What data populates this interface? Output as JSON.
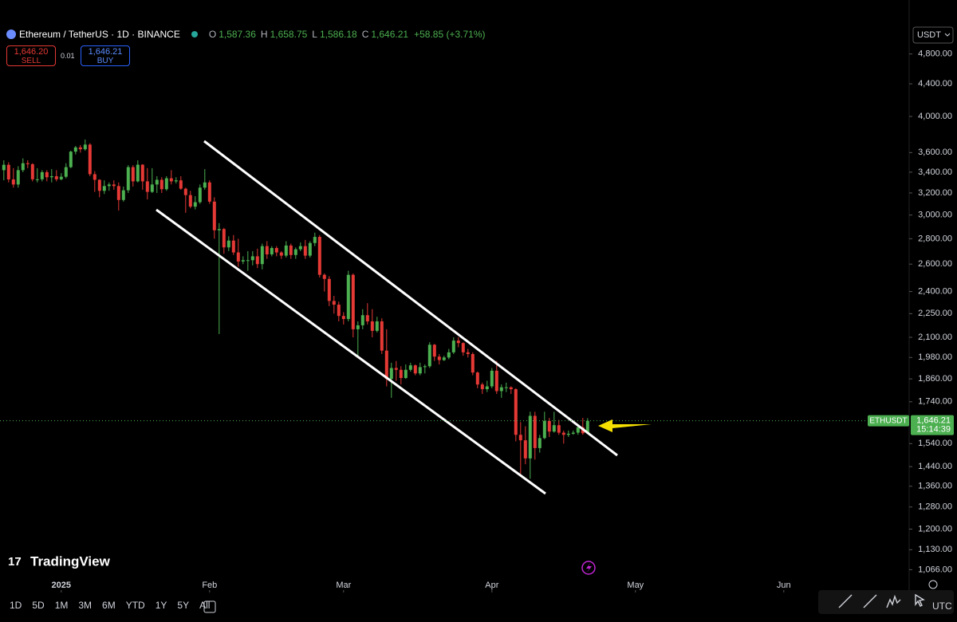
{
  "header": {
    "symbol": "Ethereum / TetherUS · 1D · BINANCE",
    "ohlc": [
      {
        "key": "O",
        "value": "1,587.36"
      },
      {
        "key": "H",
        "value": "1,658.75"
      },
      {
        "key": "L",
        "value": "1,586.18"
      },
      {
        "key": "C",
        "value": "1,646.21"
      }
    ],
    "change": "+58.85 (+3.71%)",
    "sell_price": "1,646.20",
    "sell": "SELL",
    "spread": "0.01",
    "buy_price": "1,646.21",
    "buy": "BUY",
    "currency": "USDT"
  },
  "logo": "TradingView",
  "chart_data": {
    "type": "candlestick",
    "up_color": "#4caf50",
    "down_color": "#e53935",
    "log_scale": true,
    "open": [
      3420,
      3474,
      3329,
      3280,
      3420,
      3490,
      3480,
      3330,
      3330,
      3400,
      3350,
      3360,
      3330,
      3355,
      3450,
      3610,
      3655,
      3635,
      3685,
      3380,
      3325,
      3220,
      3265,
      3280,
      3265,
      3135,
      3225,
      3450,
      3310,
      3475,
      3310,
      3210,
      3280,
      3325,
      3235,
      3340,
      3310,
      3320,
      3240,
      3180,
      3075,
      3115,
      3250,
      3300,
      3120,
      2870,
      2880,
      2730,
      2785,
      2690,
      2620,
      2630,
      2630,
      2660,
      2600,
      2740,
      2675,
      2725,
      2690,
      2665,
      2745,
      2670,
      2715,
      2740,
      2665,
      2765,
      2815,
      2520,
      2490,
      2335,
      2310,
      2235,
      2215,
      2520,
      2150,
      2175,
      2240,
      2200,
      2140,
      2200,
      2020,
      1860,
      1920,
      1910,
      1865,
      1910,
      1935,
      1890,
      1925,
      1930,
      2055,
      1985,
      1965,
      1980,
      2010,
      2080,
      2065,
      2010,
      2000,
      1895,
      1830,
      1805,
      1820,
      1905,
      1795,
      1815,
      1815,
      1805,
      1580,
      1555,
      1475,
      1670,
      1520,
      1565,
      1645,
      1595,
      1625,
      1590,
      1580,
      1585,
      1590,
      1615,
      1587.36
    ],
    "high": [
      3520,
      3500,
      3440,
      3460,
      3540,
      3520,
      3490,
      3440,
      3420,
      3420,
      3430,
      3420,
      3390,
      3490,
      3620,
      3670,
      3680,
      3740,
      3700,
      3410,
      3330,
      3320,
      3300,
      3320,
      3300,
      3260,
      3470,
      3470,
      3520,
      3480,
      3440,
      3440,
      3360,
      3350,
      3360,
      3420,
      3350,
      3360,
      3250,
      3220,
      3170,
      3280,
      3430,
      3320,
      3160,
      2930,
      2890,
      2820,
      2830,
      2800,
      2660,
      2700,
      2700,
      2720,
      2760,
      2780,
      2740,
      2740,
      2700,
      2780,
      2760,
      2730,
      2770,
      2790,
      2780,
      2850,
      2830,
      2530,
      2510,
      2370,
      2330,
      2260,
      2550,
      2530,
      2200,
      2280,
      2320,
      2280,
      2230,
      2220,
      2150,
      1950,
      1960,
      1930,
      1940,
      1950,
      1940,
      1950,
      1940,
      2070,
      2060,
      2000,
      1990,
      2030,
      2100,
      2100,
      2070,
      2030,
      2010,
      1900,
      1840,
      1850,
      1920,
      1960,
      1830,
      1840,
      1820,
      1810,
      1640,
      1620,
      1690,
      1690,
      1580,
      1690,
      1660,
      1690,
      1650,
      1600,
      1600,
      1600,
      1630,
      1660,
      1658.75
    ],
    "low": [
      3320,
      3300,
      3250,
      3250,
      3400,
      3440,
      3310,
      3300,
      3310,
      3310,
      3300,
      3310,
      3320,
      3340,
      3440,
      3580,
      3600,
      3620,
      3360,
      3210,
      3160,
      3190,
      3220,
      3230,
      3040,
      3120,
      3200,
      3260,
      3300,
      3230,
      3140,
      3200,
      3200,
      3200,
      3220,
      3280,
      3290,
      3230,
      3020,
      3060,
      3050,
      3100,
      3230,
      3100,
      2800,
      2120,
      2680,
      2700,
      2670,
      2580,
      2600,
      2550,
      2590,
      2570,
      2560,
      2640,
      2660,
      2660,
      2640,
      2650,
      2640,
      2640,
      2700,
      2640,
      2650,
      2740,
      2500,
      2400,
      2300,
      2250,
      2200,
      2180,
      2200,
      2100,
      1990,
      2150,
      2180,
      2100,
      2130,
      2000,
      1820,
      1760,
      1850,
      1830,
      1860,
      1900,
      1880,
      1880,
      1890,
      1920,
      1960,
      1940,
      1960,
      1970,
      2000,
      2040,
      1990,
      1980,
      1880,
      1810,
      1780,
      1790,
      1810,
      1780,
      1760,
      1790,
      1780,
      1550,
      1410,
      1450,
      1390,
      1470,
      1500,
      1560,
      1570,
      1590,
      1580,
      1540,
      1570,
      1580,
      1580,
      1580,
      1586.18
    ],
    "close": [
      3474,
      3329,
      3280,
      3420,
      3490,
      3480,
      3330,
      3330,
      3400,
      3350,
      3360,
      3330,
      3355,
      3450,
      3610,
      3655,
      3635,
      3685,
      3380,
      3325,
      3220,
      3265,
      3280,
      3265,
      3135,
      3225,
      3450,
      3310,
      3475,
      3310,
      3210,
      3280,
      3325,
      3235,
      3340,
      3310,
      3320,
      3240,
      3180,
      3075,
      3115,
      3250,
      3300,
      3120,
      2870,
      2880,
      2730,
      2785,
      2690,
      2620,
      2630,
      2630,
      2660,
      2600,
      2740,
      2675,
      2725,
      2690,
      2665,
      2745,
      2670,
      2715,
      2740,
      2665,
      2765,
      2815,
      2520,
      2490,
      2335,
      2310,
      2235,
      2215,
      2520,
      2150,
      2175,
      2240,
      2200,
      2140,
      2200,
      2020,
      1860,
      1920,
      1910,
      1865,
      1910,
      1935,
      1890,
      1925,
      1930,
      2055,
      1985,
      1965,
      1980,
      2010,
      2080,
      2065,
      2010,
      2000,
      1895,
      1830,
      1805,
      1820,
      1905,
      1795,
      1815,
      1815,
      1805,
      1580,
      1555,
      1475,
      1670,
      1520,
      1565,
      1645,
      1595,
      1625,
      1590,
      1580,
      1585,
      1590,
      1615,
      1587.36,
      1646.21
    ],
    "ylim": [
      1028,
      5240
    ],
    "yticks": [
      {
        "value": 4800,
        "label": "4,800.00"
      },
      {
        "value": 4400,
        "label": "4,400.00"
      },
      {
        "value": 4000,
        "label": "4,000.00"
      },
      {
        "value": 3600,
        "label": "3,600.00"
      },
      {
        "value": 3400,
        "label": "3,400.00"
      },
      {
        "value": 3200,
        "label": "3,200.00"
      },
      {
        "value": 3000,
        "label": "3,000.00"
      },
      {
        "value": 2800,
        "label": "2,800.00"
      },
      {
        "value": 2600,
        "label": "2,600.00"
      },
      {
        "value": 2400,
        "label": "2,400.00"
      },
      {
        "value": 2250,
        "label": "2,250.00"
      },
      {
        "value": 2100,
        "label": "2,100.00"
      },
      {
        "value": 1980,
        "label": "1,980.00"
      },
      {
        "value": 1860,
        "label": "1,860.00"
      },
      {
        "value": 1740,
        "label": "1,740.00"
      },
      {
        "value": 1540,
        "label": "1,540.00"
      },
      {
        "value": 1440,
        "label": "1,440.00"
      },
      {
        "value": 1360,
        "label": "1,360.00"
      },
      {
        "value": 1280,
        "label": "1,280.00"
      },
      {
        "value": 1200,
        "label": "1,200.00"
      },
      {
        "value": 1130,
        "label": "1,130.00"
      },
      {
        "value": 1066,
        "label": "1,066.00"
      }
    ],
    "xlim": [
      -0.8,
      189.2
    ],
    "xticks": [
      {
        "value": 12,
        "label": "2025"
      },
      {
        "value": 43,
        "label": "Feb"
      },
      {
        "value": 71,
        "label": "Mar"
      },
      {
        "value": 102,
        "label": "Apr"
      },
      {
        "value": 132,
        "label": "May"
      },
      {
        "value": 163,
        "label": "Jun"
      }
    ],
    "last_price": {
      "symbol": "ETHUSDT",
      "label": "1,646.21",
      "countdown": "15:14:39"
    }
  },
  "footer": {
    "ranges": [
      "1D",
      "5D",
      "1M",
      "3M",
      "6M",
      "YTD",
      "1Y",
      "5Y",
      "All"
    ],
    "timezone": "UTC"
  }
}
